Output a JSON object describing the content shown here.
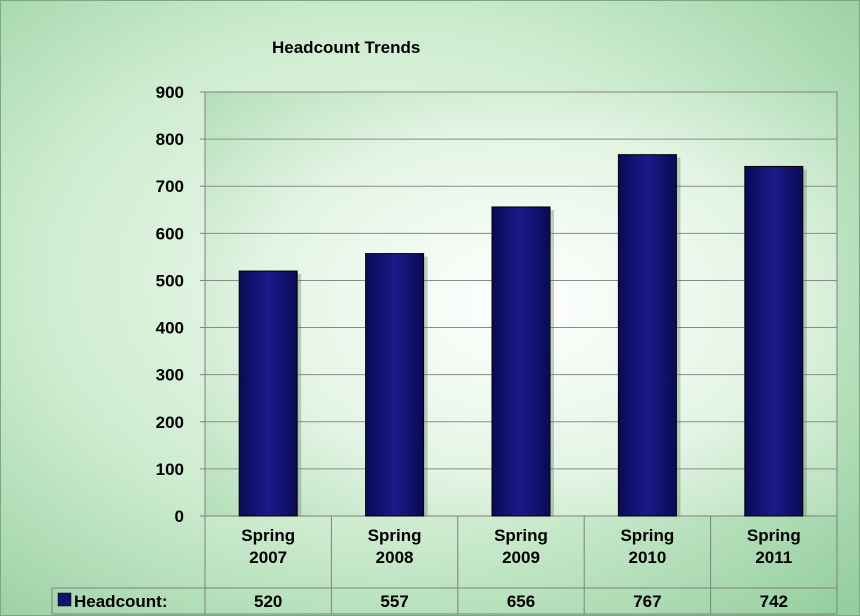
{
  "chart_data": {
    "type": "bar",
    "title": "Headcount Trends",
    "categories": [
      "Spring 2007",
      "Spring 2008",
      "Spring 2009",
      "Spring 2010",
      "Spring 2011"
    ],
    "category_lines": [
      [
        "Spring",
        "2007"
      ],
      [
        "Spring",
        "2008"
      ],
      [
        "Spring",
        "2009"
      ],
      [
        "Spring",
        "2010"
      ],
      [
        "Spring",
        "2011"
      ]
    ],
    "series": [
      {
        "name": "Headcount:",
        "values": [
          520,
          557,
          656,
          767,
          742
        ],
        "color": "#14146e"
      }
    ],
    "value_labels": [
      "520",
      "557",
      "656",
      "767",
      "742"
    ],
    "ylim": [
      0,
      900
    ],
    "yticks": [
      0,
      100,
      200,
      300,
      400,
      500,
      600,
      700,
      800,
      900
    ],
    "ytick_labels": [
      "0",
      "100",
      "200",
      "300",
      "400",
      "500",
      "600",
      "700",
      "800",
      "900"
    ],
    "xlabel": "",
    "ylabel": "",
    "grid": true,
    "legend": "data-table",
    "colors": {
      "background": "#9fd3a8",
      "plot_center": "#ffffff",
      "plot_edge": "#a8dbb0",
      "bar_dark": "#0a0a55",
      "bar_light": "#2a2ab0"
    }
  }
}
